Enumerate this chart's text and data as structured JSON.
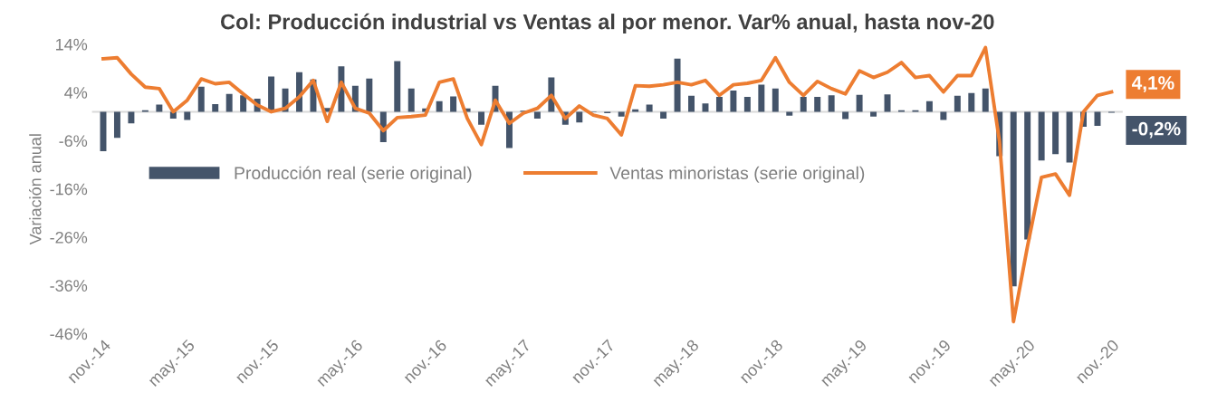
{
  "chart_data": {
    "type": "bar",
    "title": "Col: Producción industrial vs Ventas al por menor. Var% anual, hasta nov-20",
    "ylabel": "Variación anual",
    "categories": [
      "nov.-14",
      null,
      null,
      null,
      null,
      null,
      "may.-15",
      null,
      null,
      null,
      null,
      null,
      "nov.-15",
      null,
      null,
      null,
      null,
      null,
      "may.-16",
      null,
      null,
      null,
      null,
      null,
      "nov.-16",
      null,
      null,
      null,
      null,
      null,
      "may.-17",
      null,
      null,
      null,
      null,
      null,
      "nov.-17",
      null,
      null,
      null,
      null,
      null,
      "may.-18",
      null,
      null,
      null,
      null,
      null,
      "nov.-18",
      null,
      null,
      null,
      null,
      null,
      "may.-19",
      null,
      null,
      null,
      null,
      null,
      "nov.-19",
      null,
      null,
      null,
      null,
      null,
      "may.-20",
      null,
      null,
      null,
      null,
      null,
      "nov.-20"
    ],
    "series": [
      {
        "name": "Producción real (serie original)",
        "color": "#44546a",
        "values": [
          -8.2,
          -5.4,
          -2.4,
          0.3,
          1.5,
          -1.4,
          -1.7,
          5.2,
          1.6,
          3.7,
          3.4,
          2.7,
          7.3,
          4.8,
          8.2,
          6.7,
          0.8,
          9.4,
          5.4,
          6.9,
          -6.3,
          10.5,
          4.8,
          0.7,
          2.2,
          3.2,
          0.7,
          -2.7,
          5.4,
          -7.5,
          0.2,
          -1.4,
          7.1,
          -2.7,
          -2.2,
          -0.1,
          -0.3,
          -1.0,
          0.5,
          1.5,
          -1.4,
          11.0,
          3.3,
          1.7,
          3.1,
          4.4,
          3.1,
          5.6,
          4.8,
          -0.8,
          3.1,
          3.1,
          3.4,
          -1.5,
          3.5,
          -1.0,
          3.6,
          0.3,
          0.3,
          2.2,
          -1.7,
          3.3,
          3.9,
          4.8,
          -9.2,
          -36.2,
          -26.5,
          -10.1,
          -8.8,
          -10.5,
          -3.1,
          -2.9,
          -0.2
        ]
      },
      {
        "name": "Ventas minoristas (serie original)",
        "type": "line",
        "color": "#ed7d31",
        "values": [
          11.0,
          11.2,
          7.8,
          5.1,
          4.8,
          0.0,
          2.4,
          6.8,
          5.8,
          6.1,
          3.7,
          1.4,
          0.0,
          0.7,
          3.1,
          6.5,
          -2.0,
          6.1,
          0.7,
          -0.3,
          -3.9,
          -1.2,
          -1.0,
          -0.7,
          6.1,
          6.8,
          -1.4,
          -6.8,
          2.4,
          -2.4,
          -0.3,
          0.7,
          3.4,
          -1.4,
          1.2,
          -0.7,
          -1.4,
          -4.8,
          5.4,
          5.3,
          5.6,
          6.1,
          5.6,
          6.5,
          3.4,
          5.6,
          5.9,
          6.5,
          11.2,
          6.1,
          3.4,
          6.3,
          4.8,
          3.7,
          8.5,
          7.1,
          8.2,
          10.2,
          7.1,
          7.5,
          4.1,
          7.5,
          7.5,
          13.3,
          -6.1,
          -43.5,
          -27.9,
          -13.6,
          -12.9,
          -17.3,
          0.0,
          3.4,
          4.1
        ]
      }
    ],
    "ylim": [
      -46,
      14
    ],
    "yticks": [
      {
        "value": 14,
        "label": "14%"
      },
      {
        "value": 4,
        "label": "4%"
      },
      {
        "value": -6,
        "label": "-6%"
      },
      {
        "value": -16,
        "label": "-16%"
      },
      {
        "value": -26,
        "label": "-26%"
      },
      {
        "value": -36,
        "label": "-36%"
      },
      {
        "value": -46,
        "label": "-46%"
      }
    ],
    "annotations": [
      {
        "text": "4,1%",
        "x": "nov.-20",
        "y": 4.1
      },
      {
        "text": "-0,2%",
        "x": "nov.-20",
        "y": -0.2
      }
    ],
    "grid": false,
    "legend": "center left"
  }
}
